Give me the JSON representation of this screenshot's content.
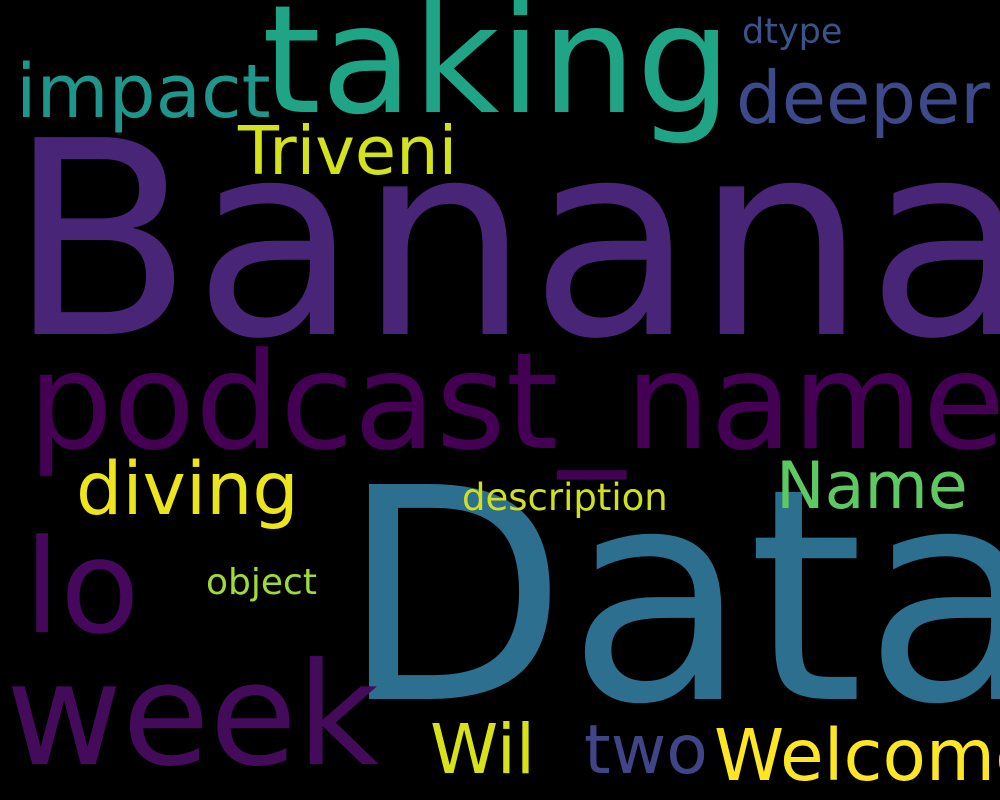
{
  "word_cloud": {
    "background": "#000000",
    "words": [
      {
        "text": "Banana",
        "color": "#482576"
      },
      {
        "text": "Data",
        "color": "#2d6f8e"
      },
      {
        "text": "podcast_name",
        "color": "#440154"
      },
      {
        "text": "taking",
        "color": "#20a486"
      },
      {
        "text": "week",
        "color": "#450b5b"
      },
      {
        "text": "lo",
        "color": "#46085c"
      },
      {
        "text": "diving",
        "color": "#ece51b"
      },
      {
        "text": "Welcome",
        "color": "#fde725"
      },
      {
        "text": "deeper",
        "color": "#3e4989"
      },
      {
        "text": "impact",
        "color": "#1f968b"
      },
      {
        "text": "Triveni",
        "color": "#d2e21b"
      },
      {
        "text": "Name",
        "color": "#5ec962"
      },
      {
        "text": "two",
        "color": "#414487"
      },
      {
        "text": "Wil",
        "color": "#d8e219"
      },
      {
        "text": "description",
        "color": "#d0e11c"
      },
      {
        "text": "object",
        "color": "#a0da39"
      },
      {
        "text": "dtype",
        "color": "#3b528b"
      }
    ]
  }
}
